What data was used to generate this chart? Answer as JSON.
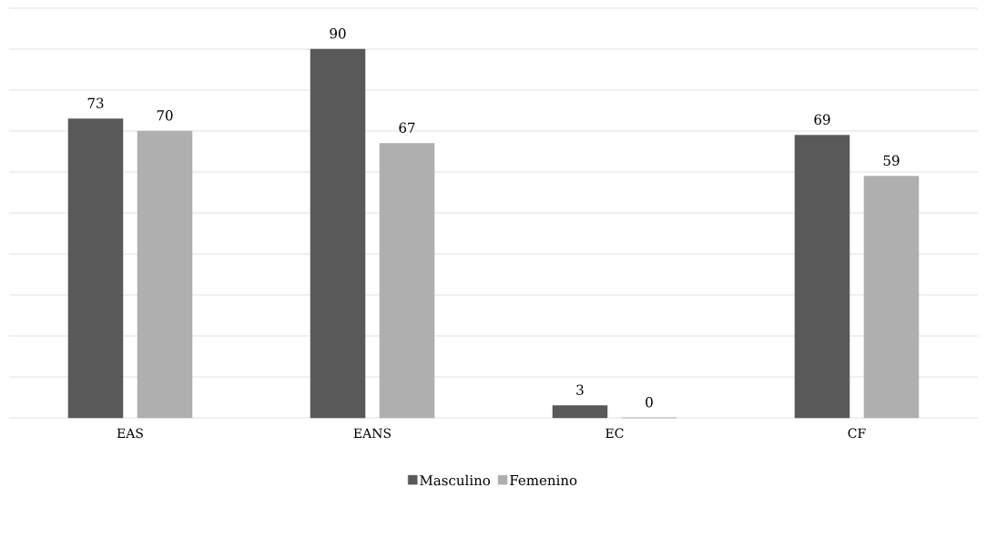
{
  "chart_data": {
    "type": "bar",
    "categories": [
      "EAS",
      "EANS",
      "EC",
      "CF"
    ],
    "series": [
      {
        "name": "Masculino",
        "color": "#595959",
        "values": [
          73,
          90,
          3,
          69
        ]
      },
      {
        "name": "Femenino",
        "color": "#afafaf",
        "values": [
          70,
          67,
          0,
          59
        ]
      }
    ],
    "ylim": [
      0,
      100
    ],
    "yticks": [
      {
        "value": 0,
        "label": null
      },
      {
        "value": 10,
        "label": null
      },
      {
        "value": 20,
        "label": null
      },
      {
        "value": 30,
        "label": null
      },
      {
        "value": 40,
        "label": null
      },
      {
        "value": 50,
        "label": null
      },
      {
        "value": 60,
        "label": null
      },
      {
        "value": 70,
        "label": null
      },
      {
        "value": 80,
        "label": null
      },
      {
        "value": 90,
        "label": null
      },
      {
        "value": 100,
        "label": null
      }
    ],
    "tick_labels": "x",
    "grid": "y",
    "legend": "bottom",
    "data_labels": true
  }
}
